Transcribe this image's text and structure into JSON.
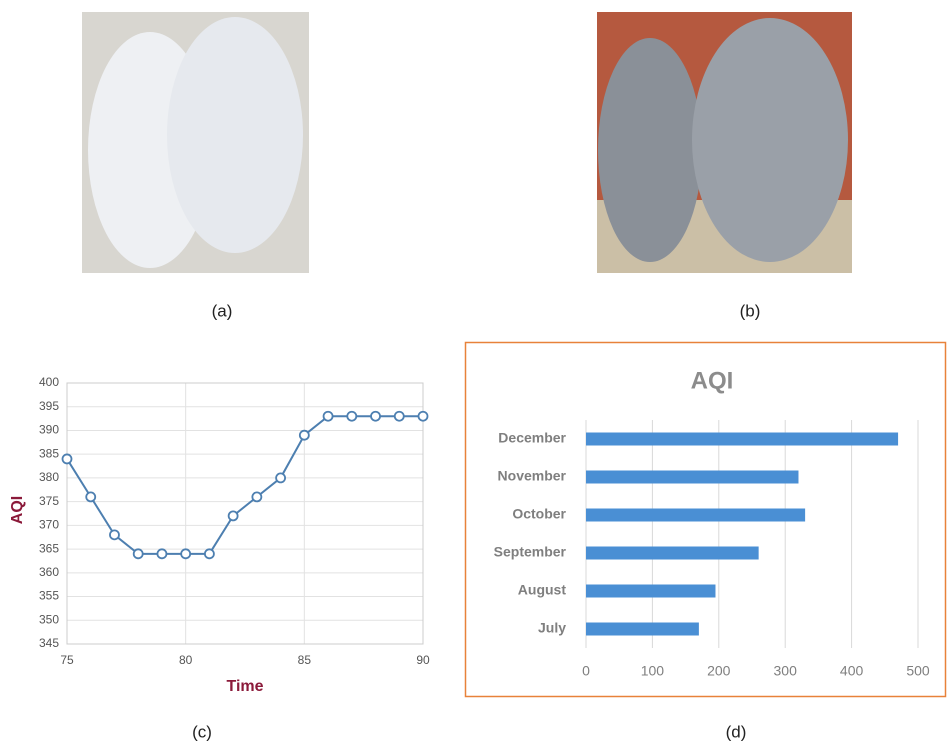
{
  "captions": [
    "(a)",
    "(b)",
    "(c)",
    "(d)"
  ],
  "chart_data": [
    {
      "type": "line",
      "xlabel": "Time",
      "ylabel": "AQI",
      "x": [
        75,
        76,
        77,
        78,
        79,
        80,
        81,
        82,
        83,
        84,
        85,
        86,
        87,
        88,
        89,
        90
      ],
      "values": [
        384,
        376,
        368,
        364,
        364,
        364,
        364,
        372,
        376,
        380,
        389,
        393,
        393,
        393,
        393,
        393
      ],
      "color": "#4d7fb0",
      "xlim": [
        75,
        90
      ],
      "xticks": [
        75,
        80,
        85,
        90
      ],
      "ylim": [
        345,
        400
      ],
      "yticks": [
        345,
        350,
        355,
        360,
        365,
        370,
        375,
        380,
        385,
        390,
        395,
        400
      ],
      "grid": true
    },
    {
      "type": "bar",
      "orientation": "horizontal",
      "title": "AQI",
      "categories": [
        "July",
        "August",
        "September",
        "October",
        "November",
        "December"
      ],
      "values": [
        170,
        195,
        260,
        330,
        320,
        470
      ],
      "color": "#4a8fd4",
      "xlim": [
        0,
        500
      ],
      "xticks": [
        0,
        100,
        200,
        300,
        400,
        500
      ],
      "grid": true
    }
  ]
}
